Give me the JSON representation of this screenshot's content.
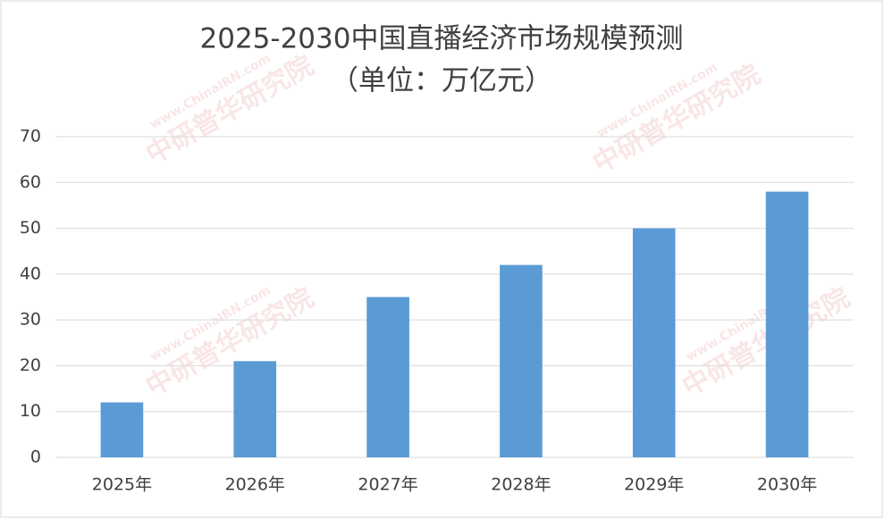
{
  "chart_data": {
    "type": "bar",
    "title": "2025-2030中国直播经济市场规模预测",
    "subtitle": "（单位：万亿元）",
    "watermark": [
      "www.ChinaIRN.com",
      "中研普华研究院"
    ],
    "categories": [
      "2025年",
      "2026年",
      "2027年",
      "2028年",
      "2029年",
      "2030年"
    ],
    "values": [
      12,
      21,
      35,
      42,
      50,
      58
    ],
    "color": "#5b9bd5",
    "ylim": [
      0,
      70
    ],
    "yticks": [
      0,
      10,
      20,
      30,
      40,
      50,
      60,
      70
    ],
    "grid": true
  }
}
